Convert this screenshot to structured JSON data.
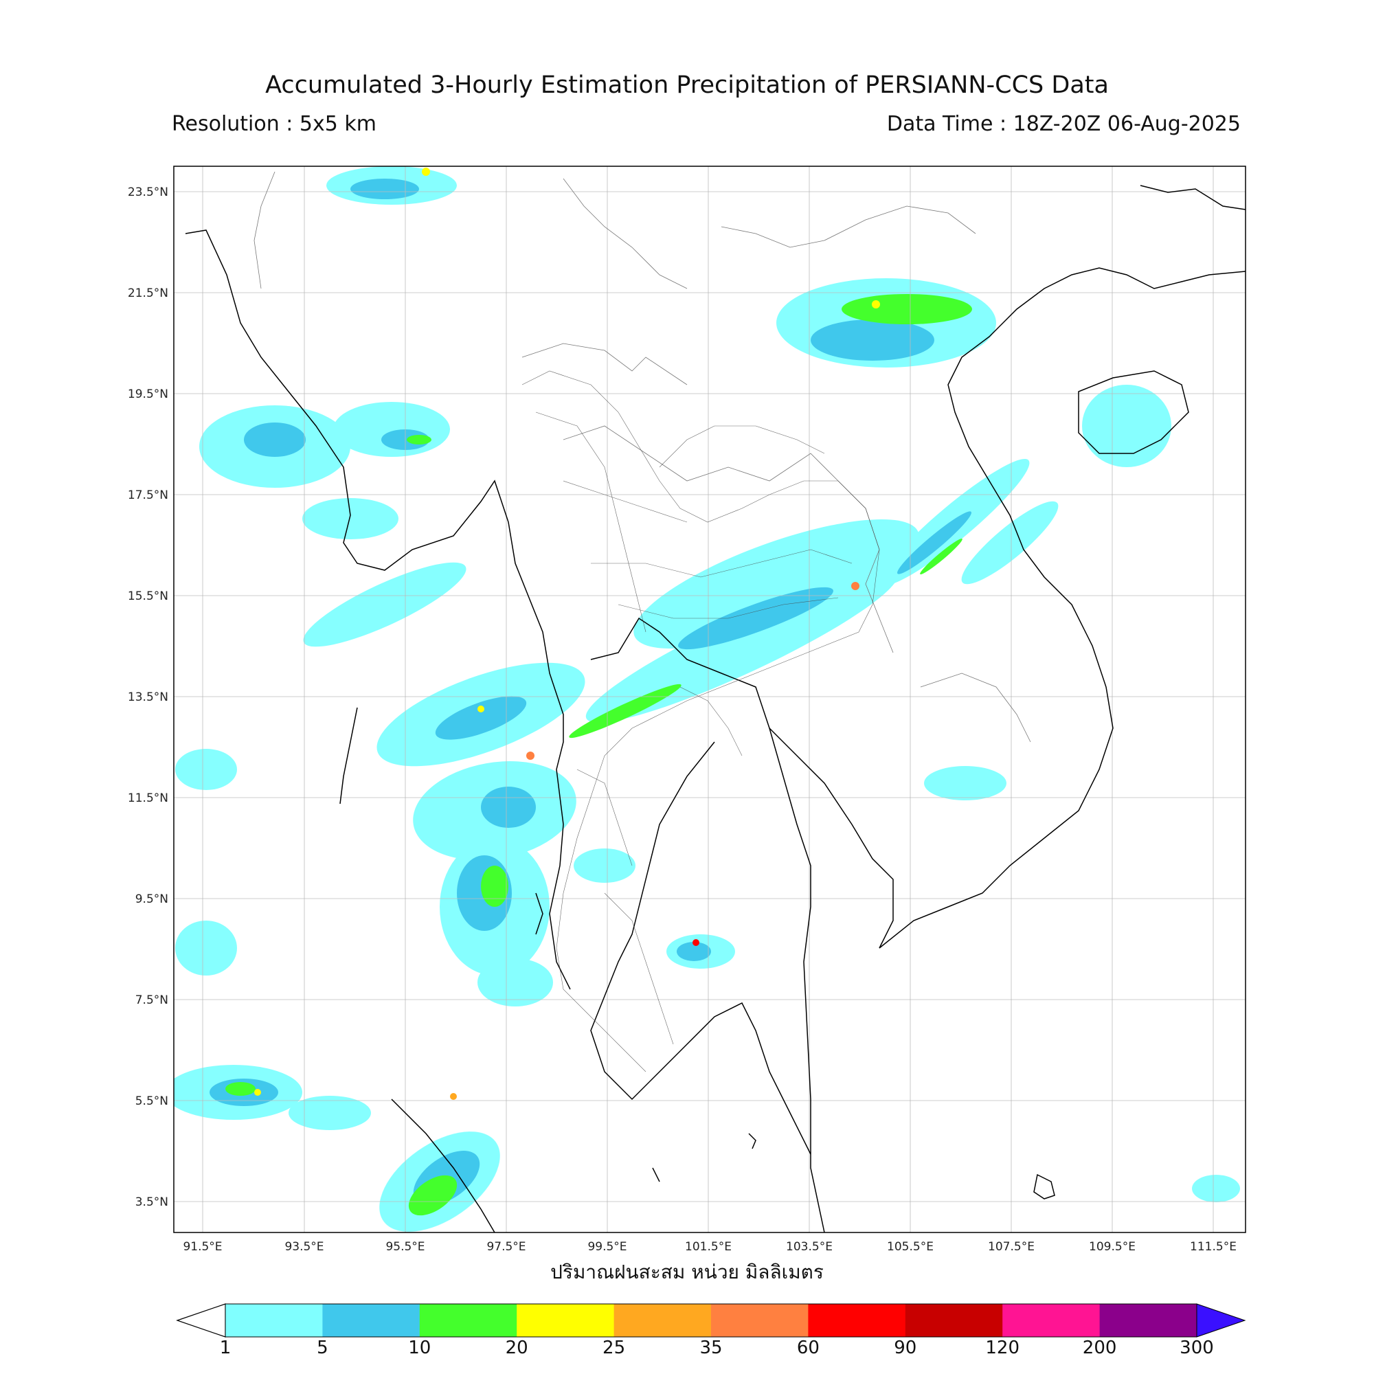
{
  "header": {
    "title": "Accumulated 3-Hourly Estimation Precipitation of PERSIANN-CCS Data",
    "resolution": "Resolution : 5x5 km",
    "data_time": "Data Time : 18Z-20Z 06-Aug-2025"
  },
  "axes": {
    "lat_labels": [
      "23.5°N",
      "21.5°N",
      "19.5°N",
      "17.5°N",
      "15.5°N",
      "13.5°N",
      "11.5°N",
      "9.5°N",
      "7.5°N",
      "5.5°N",
      "3.5°N"
    ],
    "lon_labels": [
      "91.5°E",
      "93.5°E",
      "95.5°E",
      "97.5°E",
      "99.5°E",
      "101.5°E",
      "103.5°E",
      "105.5°E",
      "107.5°E",
      "109.5°E",
      "111.5°E"
    ],
    "xlabel": "ปริมาณฝนสะสม หน่วย มิลลิเมตร"
  },
  "colorbar": {
    "ticks": [
      "1",
      "5",
      "10",
      "20",
      "25",
      "35",
      "60",
      "90",
      "120",
      "200",
      "300"
    ],
    "colors": [
      "#80ffff",
      "#40c8ec",
      "#44ff2c",
      "#ffff00",
      "#ffa820",
      "#ff8040",
      "#ff0000",
      "#c80000",
      "#ff1493",
      "#8b008b",
      "#3a10ff"
    ]
  }
}
